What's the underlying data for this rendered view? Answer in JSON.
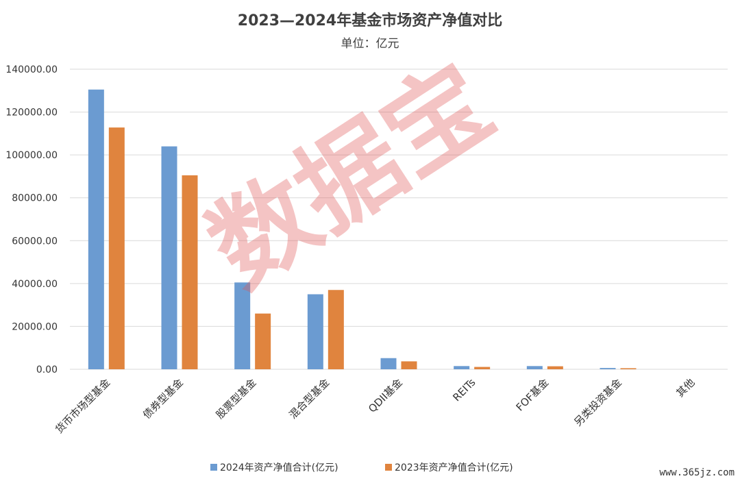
{
  "chart_data": {
    "type": "bar",
    "title": "2023—2024年基金市场资产净值对比",
    "subtitle": "单位：亿元",
    "categories": [
      "货币市场型基金",
      "债券型基金",
      "股票型基金",
      "混合型基金",
      "QDII基金",
      "REITs",
      "FOF基金",
      "另类投资基金",
      "其他"
    ],
    "series": [
      {
        "name": "2024年资产净值合计(亿元)",
        "color": "#6b9bd1",
        "values": [
          130500,
          104000,
          40500,
          35000,
          5200,
          1500,
          1500,
          600,
          0
        ]
      },
      {
        "name": "2023年资产净值合计(亿元)",
        "color": "#e0843e",
        "values": [
          112800,
          90500,
          26000,
          37000,
          3700,
          1100,
          1400,
          500,
          0
        ]
      }
    ],
    "ylim": [
      0,
      140000
    ],
    "yticks": [
      0,
      20000,
      40000,
      60000,
      80000,
      100000,
      120000,
      140000
    ],
    "ytick_labels": [
      "0.00",
      "20000.00",
      "40000.00",
      "60000.00",
      "80000.00",
      "100000.00",
      "120000.00",
      "140000.00"
    ],
    "grid": true,
    "legend_position": "bottom"
  },
  "watermark": "数据宝",
  "credit": "www.365jz.com"
}
